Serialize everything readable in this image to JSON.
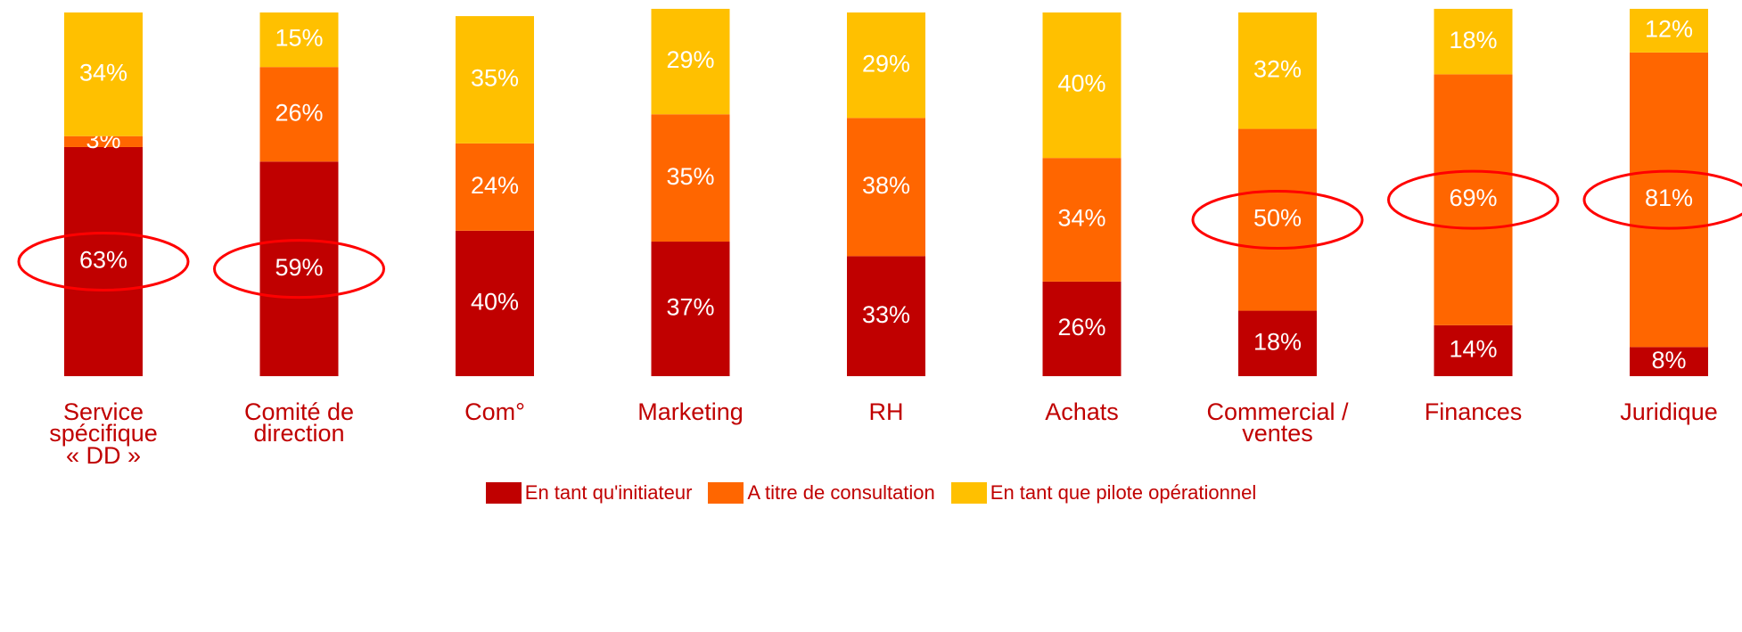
{
  "chart_data": {
    "type": "stacked_bar",
    "categories": [
      "Service\nspécifique\n« DD »",
      "Comité de\ndirection",
      "Com°",
      "Marketing",
      "RH",
      "Achats",
      "Commercial /\nventes",
      "Finances",
      "Juridique"
    ],
    "series": [
      {
        "name": "En tant qu'initiateur",
        "color": "#c00000",
        "values": [
          63,
          59,
          40,
          37,
          33,
          26,
          18,
          14,
          8
        ],
        "value_labels": [
          "63%",
          "59%",
          "40%",
          "37%",
          "33%",
          "26%",
          "18%",
          "14%",
          "8%"
        ]
      },
      {
        "name": "A titre de consultation",
        "color": "#ff6600",
        "values": [
          3,
          26,
          24,
          35,
          38,
          34,
          50,
          69,
          81
        ],
        "value_labels": [
          "3%",
          "26%",
          "24%",
          "35%",
          "38%",
          "34%",
          "50%",
          "69%",
          "81%"
        ]
      },
      {
        "name": "En tant que pilote opérationnel",
        "color": "#ffc000",
        "values": [
          34,
          15,
          35,
          29,
          29,
          40,
          32,
          18,
          12
        ],
        "value_labels": [
          "34%",
          "15%",
          "35%",
          "29%",
          "29%",
          "40%",
          "32%",
          "18%",
          "12%"
        ]
      }
    ],
    "highlighted_categories": [
      0,
      1,
      6,
      7,
      8
    ],
    "legend": "bottom"
  }
}
